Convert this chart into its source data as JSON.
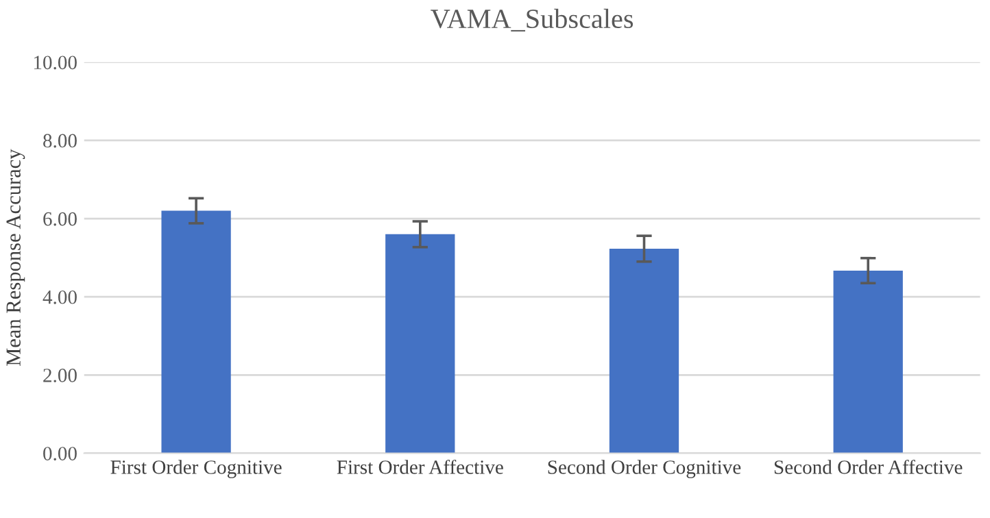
{
  "chart_data": {
    "type": "bar",
    "title": "VAMA_Subscales",
    "ylabel": "Mean Response Accuracy",
    "categories": [
      "First Order Cognitive",
      "First Order Affective",
      "Second Order Cognitive",
      "Second Order Affective"
    ],
    "values": [
      6.2,
      5.6,
      5.23,
      4.67
    ],
    "errors": [
      0.32,
      0.33,
      0.33,
      0.32
    ],
    "color": "#4472c4",
    "ylim": [
      0,
      10
    ],
    "yticks": [
      {
        "value": 0,
        "label": "0.00"
      },
      {
        "value": 2,
        "label": "2.00"
      },
      {
        "value": 4,
        "label": "4.00"
      },
      {
        "value": 6,
        "label": "6.00"
      },
      {
        "value": 8,
        "label": "8.00"
      },
      {
        "value": 10,
        "label": "10.00"
      }
    ],
    "grid": "y"
  }
}
